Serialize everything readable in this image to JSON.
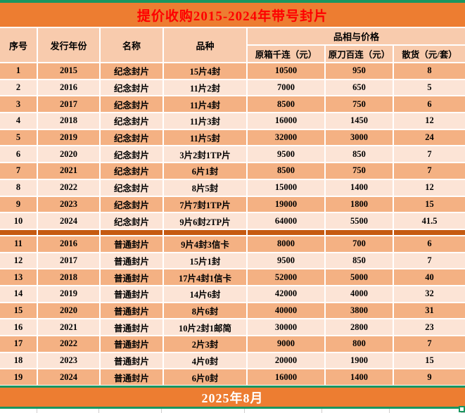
{
  "title": "提价收购2015-2024年带号封片",
  "footer": "2025年8月",
  "colors": {
    "top_border_green": "#1A9660",
    "banner_orange": "#ED7D31",
    "header_bg": "#F8CBAD",
    "row_odd_bg": "#F4B183",
    "row_even_bg": "#FCE4D6",
    "divider_bg": "#C55A11",
    "title_text": "#FE0000",
    "footer_text": "#FFFFFF"
  },
  "table": {
    "headers": {
      "serial": "序号",
      "year": "发行年份",
      "name": "名称",
      "variety": "品种",
      "price_group": "品相与价格",
      "box_thousand": "原箱千连（元）",
      "knife_hundred": "原刀百连（元）",
      "loose": "散货（元/套）"
    },
    "groups": [
      {
        "rows": [
          [
            "1",
            "2015",
            "纪念封片",
            "15片4封",
            "10500",
            "950",
            "8"
          ],
          [
            "2",
            "2016",
            "纪念封片",
            "11片2封",
            "7000",
            "650",
            "5"
          ],
          [
            "3",
            "2017",
            "纪念封片",
            "11片4封",
            "8500",
            "750",
            "6"
          ],
          [
            "4",
            "2018",
            "纪念封片",
            "11片3封",
            "16000",
            "1450",
            "12"
          ],
          [
            "5",
            "2019",
            "纪念封片",
            "11片5封",
            "32000",
            "3000",
            "24"
          ],
          [
            "6",
            "2020",
            "纪念封片",
            "3片2封1TP片",
            "9500",
            "850",
            "7"
          ],
          [
            "7",
            "2021",
            "纪念封片",
            "6片1封",
            "8500",
            "750",
            "7"
          ],
          [
            "8",
            "2022",
            "纪念封片",
            "8片5封",
            "15000",
            "1400",
            "12"
          ],
          [
            "9",
            "2023",
            "纪念封片",
            "7片7封1TP片",
            "19000",
            "1800",
            "15"
          ],
          [
            "10",
            "2024",
            "纪念封片",
            "9片6封2TP片",
            "64000",
            "5500",
            "41.5"
          ]
        ]
      },
      {
        "rows": [
          [
            "11",
            "2016",
            "普通封片",
            "9片4封3信卡",
            "8000",
            "700",
            "6"
          ],
          [
            "12",
            "2017",
            "普通封片",
            "15片1封",
            "9500",
            "850",
            "7"
          ],
          [
            "13",
            "2018",
            "普通封片",
            "17片4封1信卡",
            "52000",
            "5000",
            "40"
          ],
          [
            "14",
            "2019",
            "普通封片",
            "14片6封",
            "42000",
            "4000",
            "32"
          ],
          [
            "15",
            "2020",
            "普通封片",
            "8片6封",
            "40000",
            "3800",
            "31"
          ],
          [
            "16",
            "2021",
            "普通封片",
            "10片2封1邮简",
            "30000",
            "2800",
            "23"
          ],
          [
            "17",
            "2022",
            "普通封片",
            "2片3封",
            "9000",
            "800",
            "7"
          ],
          [
            "18",
            "2023",
            "普通封片",
            "4片0封",
            "20000",
            "1900",
            "15"
          ],
          [
            "19",
            "2024",
            "普通封片",
            "6片0封",
            "16000",
            "1400",
            "9"
          ]
        ]
      }
    ]
  }
}
